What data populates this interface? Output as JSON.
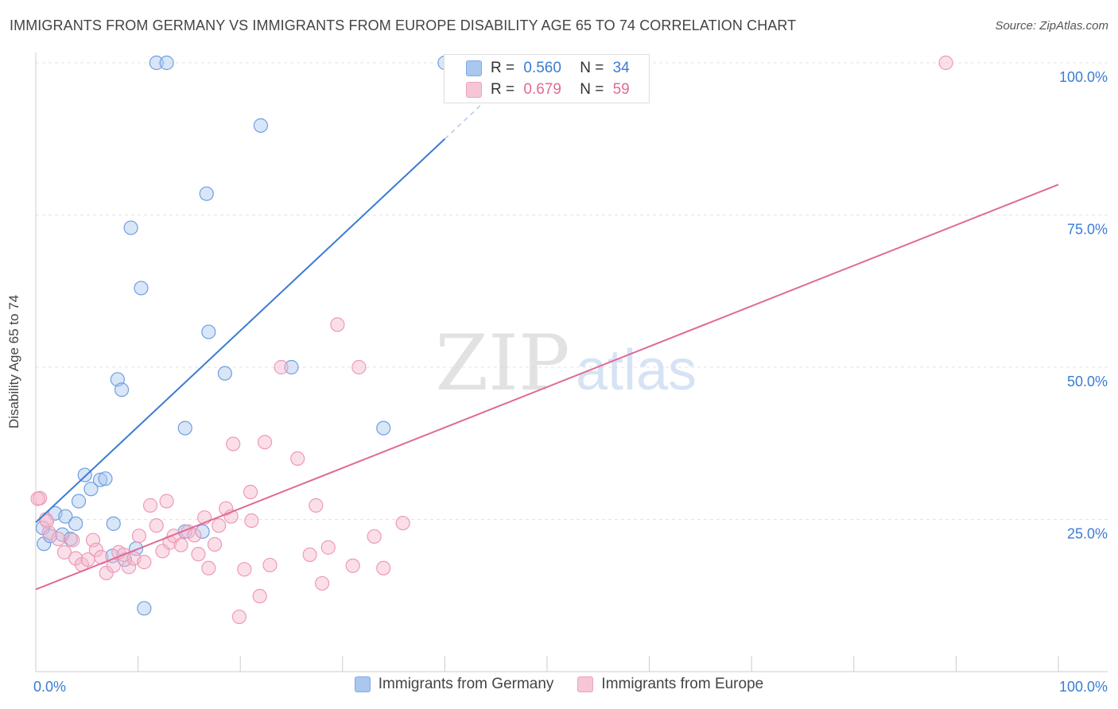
{
  "title": "IMMIGRANTS FROM GERMANY VS IMMIGRANTS FROM EUROPE DISABILITY AGE 65 TO 74 CORRELATION CHART",
  "source": "Source: ZipAtlas.com",
  "watermark": {
    "zip": "ZIP",
    "atlas": "atlas"
  },
  "colors": {
    "blue": "#3a7bd5",
    "pink": "#e06a96",
    "blue_fill": "#a9c7ef",
    "pink_fill": "#f6b8cc"
  },
  "stats": [
    {
      "r_label": "R =",
      "r_value": "0.560",
      "n_label": "N =",
      "n_value": "34"
    },
    {
      "r_label": "R =",
      "r_value": "0.679",
      "n_label": "N =",
      "n_value": "59"
    }
  ],
  "legend": [
    "Immigrants from Germany",
    "Immigrants from Europe"
  ],
  "chart_data": {
    "type": "scatter",
    "title": "IMMIGRANTS FROM GERMANY VS IMMIGRANTS FROM EUROPE DISABILITY AGE 65 TO 74 CORRELATION CHART",
    "xlabel": "",
    "ylabel": "Disability Age 65 to 74",
    "xlim": [
      0,
      100
    ],
    "ylim": [
      0,
      100
    ],
    "x_tick_labels": [
      "0.0%",
      "100.0%"
    ],
    "y_tick_values": [
      25,
      50,
      75,
      100
    ],
    "y_tick_labels": [
      "25.0%",
      "50.0%",
      "75.0%",
      "100.0%"
    ],
    "series": [
      {
        "name": "Immigrants from Germany",
        "color": "#3a7bd5",
        "trend": {
          "x0": 0,
          "y0": 24.5,
          "x1": 40,
          "y1": 87.5,
          "dashed_to_x": 43.5
        },
        "points": [
          [
            0.7,
            23.6
          ],
          [
            0.8,
            21.0
          ],
          [
            1.4,
            22.3
          ],
          [
            1.9,
            26.0
          ],
          [
            2.6,
            22.5
          ],
          [
            2.9,
            25.5
          ],
          [
            3.4,
            21.8
          ],
          [
            3.9,
            24.3
          ],
          [
            4.2,
            28.0
          ],
          [
            4.8,
            32.3
          ],
          [
            5.4,
            30.0
          ],
          [
            6.3,
            31.5
          ],
          [
            6.8,
            31.7
          ],
          [
            7.5,
            19.0
          ],
          [
            7.6,
            24.3
          ],
          [
            8.0,
            48.0
          ],
          [
            8.4,
            46.3
          ],
          [
            8.7,
            18.4
          ],
          [
            9.3,
            72.9
          ],
          [
            9.8,
            20.2
          ],
          [
            10.3,
            63.0
          ],
          [
            10.6,
            10.4
          ],
          [
            11.8,
            100
          ],
          [
            12.8,
            100
          ],
          [
            14.6,
            40.0
          ],
          [
            14.6,
            23.0
          ],
          [
            16.3,
            23.0
          ],
          [
            16.7,
            78.5
          ],
          [
            16.9,
            55.8
          ],
          [
            18.5,
            49.0
          ],
          [
            22.0,
            89.7
          ],
          [
            25.0,
            50.0
          ],
          [
            34.0,
            40.0
          ],
          [
            40.0,
            100
          ]
        ]
      },
      {
        "name": "Immigrants from Europe",
        "color": "#e06a96",
        "trend": {
          "x0": 0,
          "y0": 13.5,
          "x1": 100,
          "y1": 80.0
        },
        "points": [
          [
            0.4,
            28.5
          ],
          [
            1.0,
            25.0
          ],
          [
            1.3,
            22.8
          ],
          [
            2.2,
            21.8
          ],
          [
            2.8,
            19.6
          ],
          [
            3.6,
            21.6
          ],
          [
            3.9,
            18.6
          ],
          [
            4.5,
            17.6
          ],
          [
            5.1,
            18.4
          ],
          [
            5.6,
            21.6
          ],
          [
            5.9,
            20.0
          ],
          [
            6.4,
            18.8
          ],
          [
            6.9,
            16.2
          ],
          [
            7.6,
            17.4
          ],
          [
            8.1,
            19.6
          ],
          [
            8.6,
            19.2
          ],
          [
            9.1,
            17.2
          ],
          [
            9.6,
            18.6
          ],
          [
            10.1,
            22.3
          ],
          [
            10.6,
            18.0
          ],
          [
            11.2,
            27.3
          ],
          [
            11.8,
            24.0
          ],
          [
            12.4,
            19.8
          ],
          [
            12.8,
            28.0
          ],
          [
            13.1,
            21.2
          ],
          [
            13.5,
            22.3
          ],
          [
            14.2,
            20.8
          ],
          [
            14.9,
            23.0
          ],
          [
            15.5,
            22.4
          ],
          [
            15.9,
            19.3
          ],
          [
            16.5,
            25.3
          ],
          [
            16.9,
            17.0
          ],
          [
            17.5,
            20.9
          ],
          [
            17.9,
            24.0
          ],
          [
            18.6,
            26.8
          ],
          [
            19.1,
            25.5
          ],
          [
            19.3,
            37.4
          ],
          [
            19.9,
            9.0
          ],
          [
            20.4,
            16.8
          ],
          [
            21.0,
            29.5
          ],
          [
            21.1,
            24.8
          ],
          [
            21.9,
            12.4
          ],
          [
            22.4,
            37.7
          ],
          [
            22.9,
            17.5
          ],
          [
            24.0,
            50.0
          ],
          [
            25.6,
            35.0
          ],
          [
            26.8,
            19.2
          ],
          [
            27.4,
            27.3
          ],
          [
            28.0,
            14.5
          ],
          [
            28.6,
            20.4
          ],
          [
            29.5,
            57.0
          ],
          [
            31.0,
            17.4
          ],
          [
            31.6,
            50.0
          ],
          [
            33.1,
            22.2
          ],
          [
            34.0,
            17.0
          ],
          [
            35.9,
            24.4
          ],
          [
            89.0,
            100
          ],
          [
            1.1,
            24.7
          ],
          [
            0.2,
            28.4
          ]
        ]
      }
    ]
  }
}
